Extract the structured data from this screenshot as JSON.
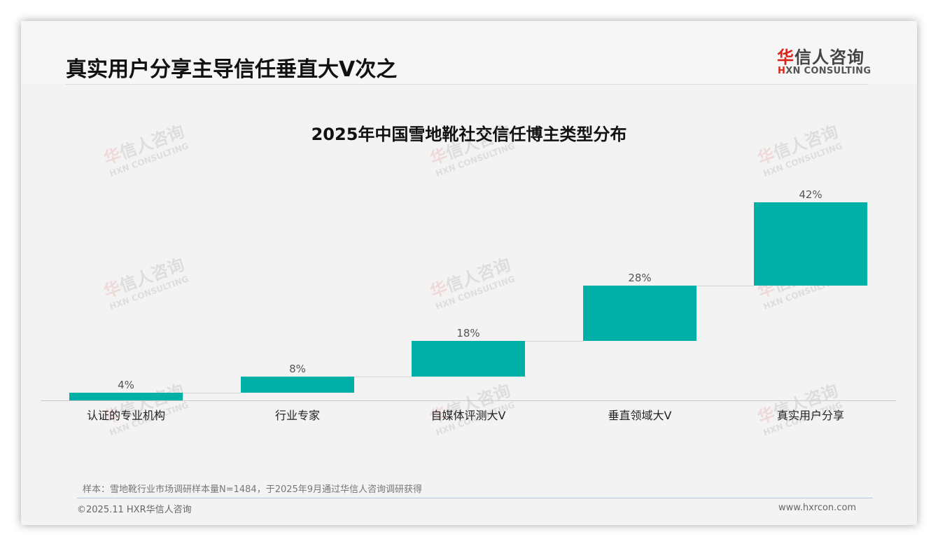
{
  "header": {
    "title": "真实用户分享主导信任垂直大V次之",
    "logo": {
      "cn_red": "华",
      "cn_rest": "信人咨询",
      "en_red": "H",
      "en_rest": "XN CONSULTING"
    }
  },
  "watermark": {
    "cn_red": "华",
    "cn_rest": "信人咨询",
    "en": "HXN CONSULTING"
  },
  "chart_data": {
    "type": "bar",
    "subtype": "waterfall",
    "title": "2025年中国雪地靴社交信任博主类型分布",
    "categories": [
      "认证的专业机构",
      "行业专家",
      "自媒体评测大V",
      "垂直领域大V",
      "真实用户分享"
    ],
    "values": [
      4,
      8,
      18,
      28,
      42
    ],
    "value_labels": [
      "4%",
      "8%",
      "18%",
      "28%",
      "42%"
    ],
    "unit": "%",
    "xlabel": "",
    "ylabel": "",
    "ylim": [
      0,
      100
    ],
    "grid": false,
    "legend": null,
    "bar_color": "#00afa6"
  },
  "footer": {
    "note": "样本：雪地靴行业市场调研样本量N=1484，于2025年9月通过华信人咨询调研获得",
    "copyright": "©2025.11 HXR华信人咨询",
    "website": "www.hxrcon.com"
  }
}
